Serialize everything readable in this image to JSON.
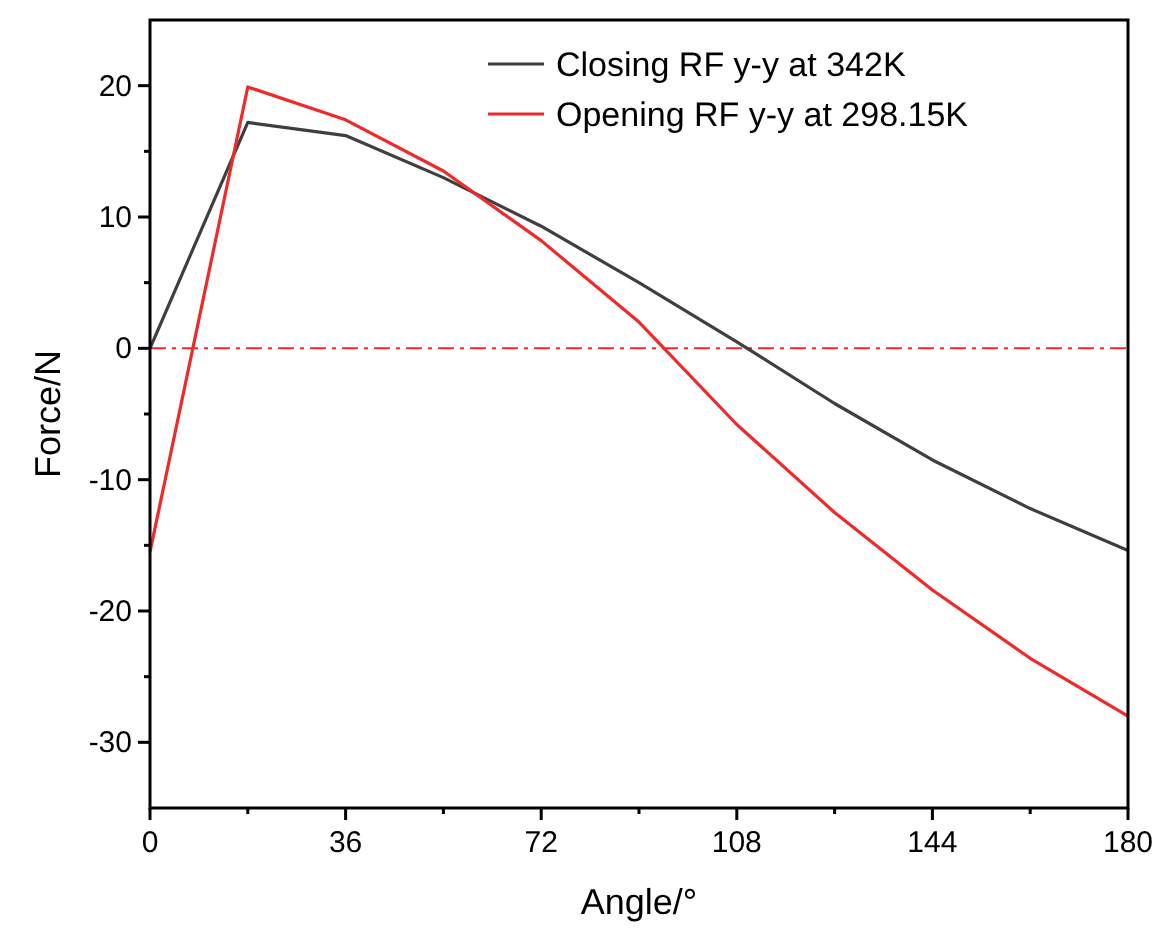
{
  "chart_data": {
    "type": "line",
    "xlabel": "Angle/°",
    "ylabel": "Force/N",
    "x": [
      0,
      18,
      36,
      54,
      72,
      90,
      108,
      126,
      144,
      162,
      180
    ],
    "series": [
      {
        "name": "Closing RF y-y at 342K",
        "color": "#3f3f3f",
        "values": [
          0,
          17.2,
          16.2,
          13,
          9.3,
          5,
          0.5,
          -4.2,
          -8.5,
          -12.2,
          -15.4
        ]
      },
      {
        "name": "Opening RF y-y at 298.15K",
        "color": "#ee2a2a",
        "values": [
          -15.5,
          19.9,
          17.4,
          13.5,
          8.2,
          2,
          -5.8,
          -12.5,
          -18.4,
          -23.6,
          -28
        ]
      }
    ],
    "xlim": [
      0,
      180
    ],
    "xticks": [
      0,
      {
        "value": 18,
        "label": null
      },
      36,
      {
        "value": 54,
        "label": null
      },
      72,
      {
        "value": 90,
        "label": null
      },
      108,
      {
        "value": 126,
        "label": null
      },
      144,
      {
        "value": 162,
        "label": null
      },
      180
    ],
    "ylim": [
      -35,
      25
    ],
    "yticks": [
      -30,
      {
        "value": -25,
        "label": null
      },
      -20,
      {
        "value": -15,
        "label": null
      },
      -10,
      {
        "value": -5,
        "label": null
      },
      0,
      {
        "value": 5,
        "label": null
      },
      10,
      {
        "value": 15,
        "label": null
      },
      20
    ],
    "ref_lines": [
      {
        "axis": "y",
        "value": 0,
        "color": "#ee2a2a",
        "line_style": "dashdot"
      }
    ],
    "legend": "top right",
    "grid": false,
    "marker": "none",
    "line_style": "solid"
  }
}
